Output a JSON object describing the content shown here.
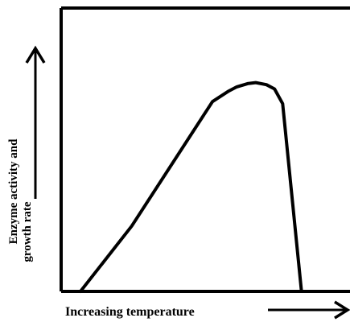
{
  "chart_data": {
    "type": "line",
    "xlabel": "Increasing temperature",
    "ylabel_line1": "Enzyme activity and",
    "ylabel_line2": "growth rate",
    "grid": false,
    "xlim": [
      0,
      100
    ],
    "ylim": [
      0,
      100
    ],
    "series": [
      {
        "x": [
          0,
          19,
          49,
          55,
          58,
          62,
          65,
          69,
          72,
          75,
          82
        ],
        "y": [
          0,
          31,
          90,
          95,
          97,
          98.5,
          99,
          98,
          96,
          89,
          0
        ]
      }
    ],
    "line_color": "#000000"
  }
}
